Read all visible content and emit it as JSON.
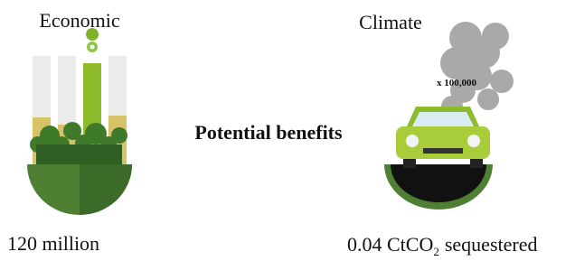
{
  "left": {
    "title": "Economic",
    "value": "120 million"
  },
  "center": {
    "title": "Potential benefits"
  },
  "right": {
    "title": "Climate",
    "badge": "x 100,000",
    "value_prefix": "0.04 CtCO",
    "value_sub": "2",
    "value_suffix": "sequestered"
  }
}
